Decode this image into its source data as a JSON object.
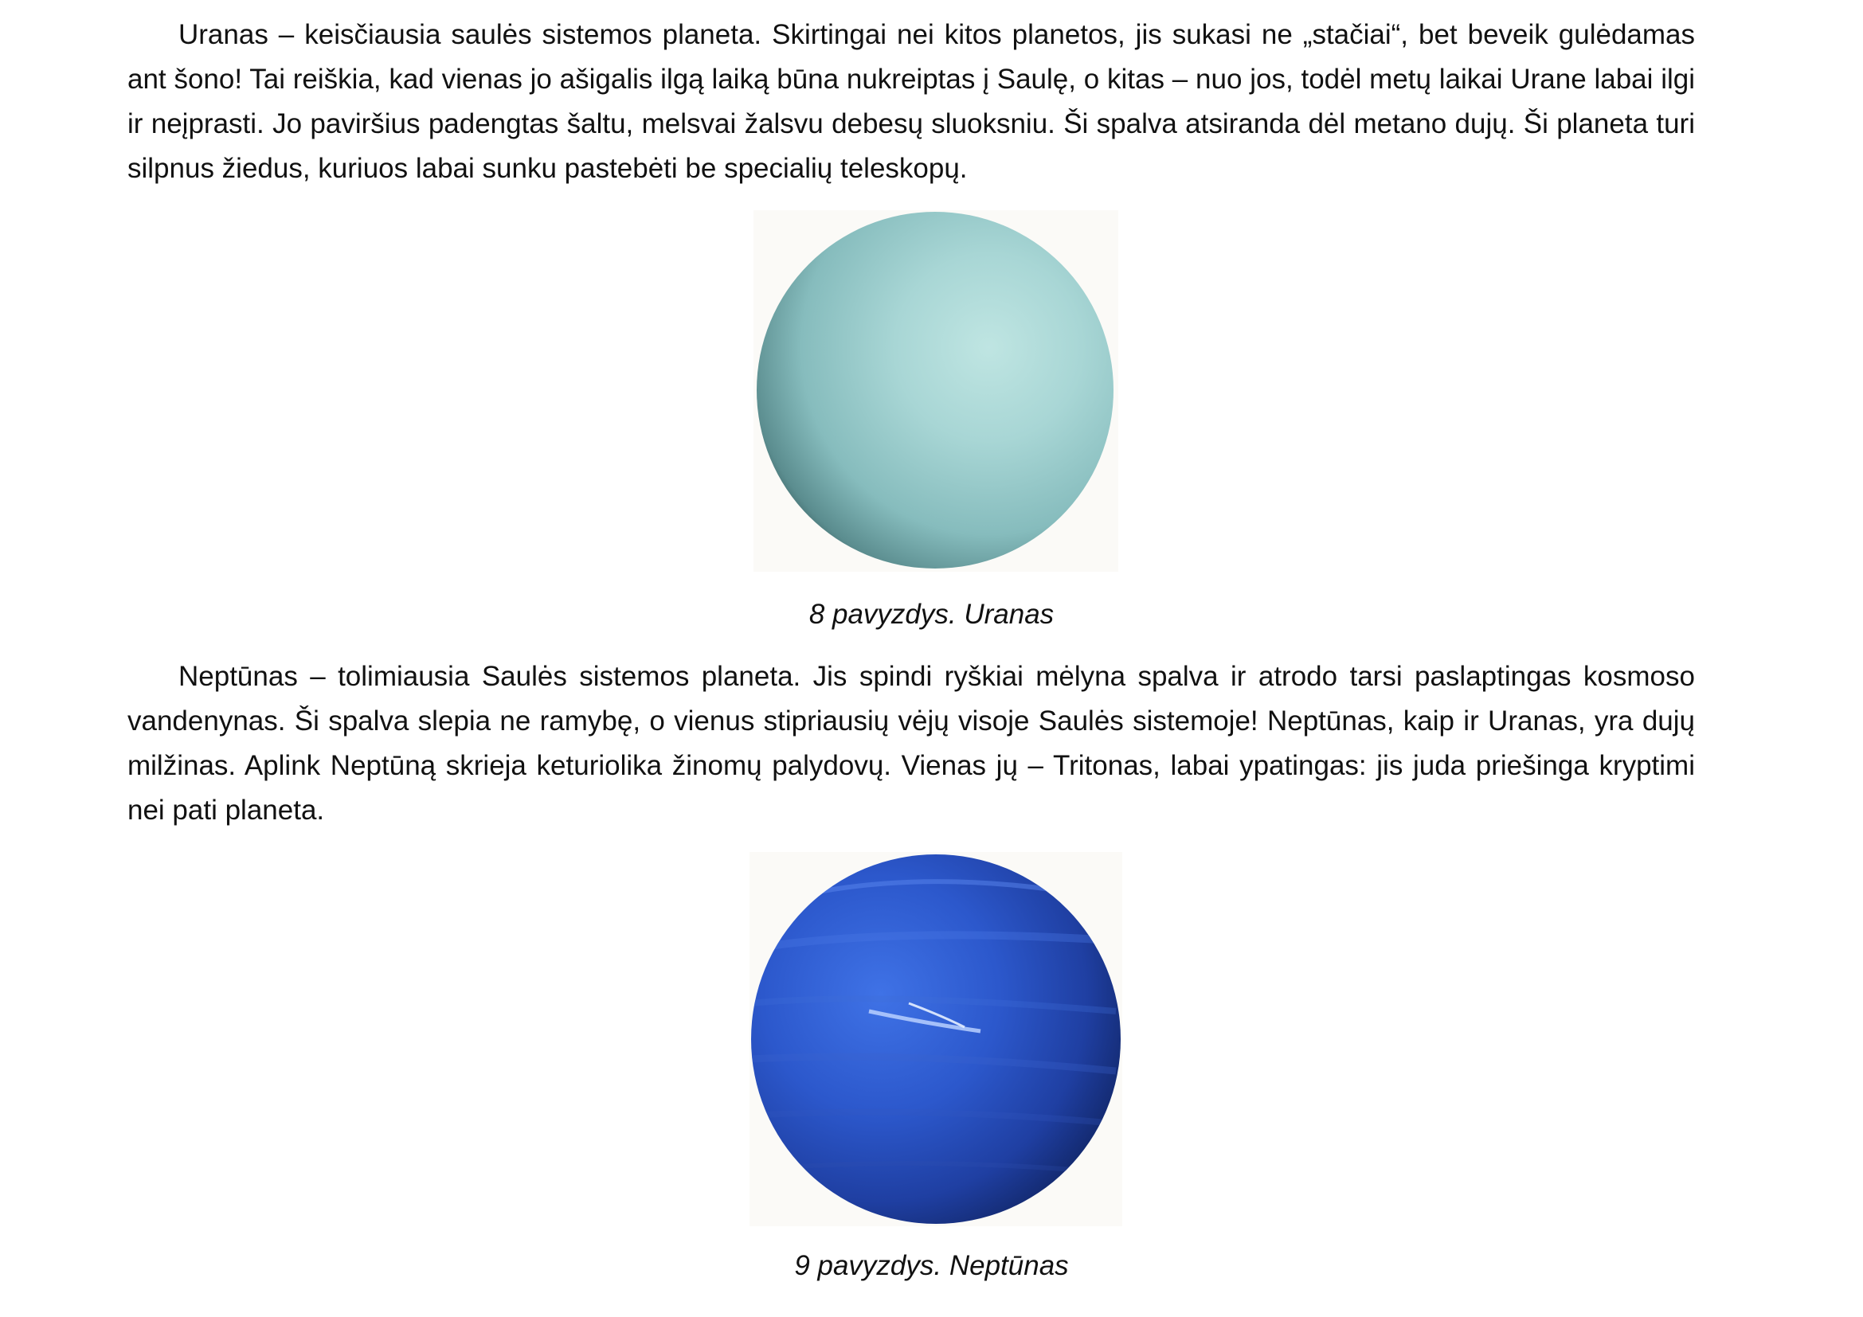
{
  "paragraphs": {
    "uranus": "Uranas – keisčiausia saulės sistemos planeta. Skirtingai nei kitos planetos, jis sukasi ne „stačiai“, bet beveik gulėdamas ant šono! Tai reiškia, kad vienas jo ašigalis ilgą laiką būna nukreiptas į Saulę, o kitas – nuo jos, todėl metų laikai Urane labai ilgi ir neįprasti. Jo paviršius padengtas šaltu, melsvai žalsvu debesų sluoksniu. Ši spalva atsiranda dėl metano dujų. Ši planeta turi silpnus žiedus, kuriuos labai sunku pastebėti be specialių teleskopų.",
    "neptune": "Neptūnas – tolimiausia Saulės sistemos planeta. Jis spindi ryškiai mėlyna spalva ir atrodo tarsi paslaptingas kosmoso vandenynas. Ši spalva slepia ne ramybę, o vienus stipriausių vėjų visoje Saulės sistemoje! Neptūnas, kaip ir Uranas, yra dujų milžinas. Aplink Neptūną skrieja keturiolika žinomų palydovų. Vienas jų – Tritonas, labai ypatingas: jis juda priešinga kryptimi nei pati planeta."
  },
  "figures": {
    "uranus": {
      "caption": "8 pavyzdys. Uranas",
      "colors": {
        "highlight": "#bde3e1",
        "mid": "#8fc4c5",
        "shadow": "#365a5c",
        "background": "#fbfaf7"
      }
    },
    "neptune": {
      "caption": "9 pavyzdys. Neptūnas",
      "colors": {
        "highlight": "#3d6fe0",
        "mid": "#2a52c4",
        "shadow": "#0b1a45",
        "background": "#fbfaf7"
      }
    }
  }
}
